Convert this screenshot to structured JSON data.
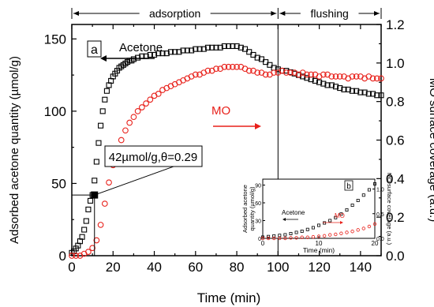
{
  "chart_data": [
    {
      "type": "scatter",
      "panel_label": "a",
      "xlabel": "Time (min)",
      "ylabel": "Adsorbed acetone quantity (µmol/g)",
      "y2label": "MO surface coverage (a.u.)",
      "xlim": [
        0,
        150
      ],
      "ylim": [
        0,
        160
      ],
      "y2lim": [
        0,
        1.2
      ],
      "xticks": [
        "0",
        "20",
        "40",
        "60",
        "80",
        "100",
        "120",
        "140"
      ],
      "yticks": [
        "0",
        "50",
        "100",
        "150"
      ],
      "y2ticks": [
        "0.0",
        "0.2",
        "0.4",
        "0.6",
        "0.8",
        "1.0",
        "1.2"
      ],
      "phases": [
        {
          "label": "adsorption",
          "from": 0,
          "to": 100
        },
        {
          "label": "flushing",
          "from": 100,
          "to": 150
        }
      ],
      "annotation": {
        "text": "42µmol/g,θ=0.29",
        "x": 11,
        "y": 42
      },
      "series": [
        {
          "name": "Acetone",
          "axis": "left",
          "color": "#000000",
          "marker": "square",
          "x": [
            0,
            1,
            2,
            3,
            4,
            5,
            6,
            7,
            8,
            9,
            10,
            11,
            12,
            13,
            14,
            15,
            16,
            17,
            18,
            19,
            20,
            21,
            22,
            23,
            24,
            25,
            26,
            27,
            28,
            29,
            30,
            32,
            34,
            36,
            38,
            40,
            42,
            44,
            46,
            48,
            50,
            52,
            54,
            56,
            58,
            60,
            62,
            64,
            66,
            68,
            70,
            72,
            74,
            76,
            78,
            80,
            82,
            84,
            86,
            88,
            90,
            92,
            94,
            96,
            98,
            100,
            102,
            104,
            106,
            108,
            110,
            112,
            114,
            116,
            118,
            120,
            122,
            124,
            126,
            128,
            130,
            132,
            134,
            136,
            138,
            140,
            142,
            144,
            146,
            148,
            150
          ],
          "y": [
            2,
            3,
            5,
            7,
            10,
            13,
            18,
            24,
            32,
            38,
            42,
            52,
            65,
            78,
            90,
            100,
            108,
            114,
            118,
            121,
            124,
            126,
            128,
            130,
            131,
            132,
            133,
            134,
            135,
            135,
            136,
            137,
            138,
            138,
            139,
            139,
            140,
            140,
            140,
            141,
            141,
            141,
            142,
            142,
            142,
            143,
            143,
            143,
            144,
            144,
            144,
            144,
            145,
            145,
            145,
            145,
            144,
            143,
            141,
            139,
            137,
            136,
            134,
            132,
            130,
            129,
            128,
            128,
            127,
            126,
            125,
            124,
            123,
            122,
            121,
            120,
            119,
            118,
            118,
            117,
            116,
            115,
            115,
            114,
            114,
            113,
            113,
            112,
            112,
            111,
            111
          ]
        },
        {
          "name": "MO",
          "axis": "right",
          "color": "#e8201a",
          "marker": "circle",
          "x": [
            0,
            2,
            4,
            6,
            8,
            10,
            12,
            14,
            16,
            18,
            20,
            22,
            24,
            26,
            28,
            30,
            32,
            34,
            36,
            38,
            40,
            42,
            44,
            46,
            48,
            50,
            52,
            54,
            56,
            58,
            60,
            62,
            64,
            66,
            68,
            70,
            72,
            74,
            76,
            78,
            80,
            82,
            84,
            86,
            88,
            90,
            92,
            94,
            96,
            98,
            100,
            102,
            104,
            106,
            108,
            110,
            112,
            114,
            116,
            118,
            120,
            122,
            124,
            126,
            128,
            130,
            132,
            134,
            136,
            138,
            140,
            142,
            144,
            146,
            148,
            150
          ],
          "y": [
            0.0,
            0.0,
            0.0,
            0.01,
            0.02,
            0.04,
            0.08,
            0.16,
            0.27,
            0.38,
            0.47,
            0.54,
            0.6,
            0.65,
            0.69,
            0.72,
            0.75,
            0.77,
            0.79,
            0.81,
            0.83,
            0.84,
            0.86,
            0.87,
            0.88,
            0.89,
            0.9,
            0.91,
            0.92,
            0.93,
            0.94,
            0.94,
            0.95,
            0.96,
            0.96,
            0.97,
            0.97,
            0.98,
            0.98,
            0.98,
            0.98,
            0.98,
            0.97,
            0.96,
            0.96,
            0.95,
            0.95,
            0.94,
            0.94,
            0.95,
            0.95,
            0.96,
            0.95,
            0.95,
            0.95,
            0.94,
            0.95,
            0.94,
            0.94,
            0.94,
            0.93,
            0.94,
            0.94,
            0.93,
            0.93,
            0.93,
            0.93,
            0.92,
            0.93,
            0.93,
            0.93,
            0.92,
            0.93,
            0.92,
            0.92,
            0.92
          ]
        }
      ]
    },
    {
      "type": "scatter",
      "panel_label": "b",
      "xlabel": "Time (min)",
      "ylabel": "Adsorbed acetone quantity (µmol/g)",
      "y2label": "MO surface coverage (a.u.)",
      "xlim": [
        0,
        20
      ],
      "ylim": [
        0,
        100
      ],
      "y2lim": [
        0,
        1.2
      ],
      "xticks": [
        "0",
        "10",
        "20"
      ],
      "yticks": [
        "0",
        "30",
        "60",
        "90"
      ],
      "y2ticks": [
        "0.0",
        "0.5",
        "1.0"
      ],
      "series": [
        {
          "name": "Acetone",
          "axis": "left",
          "color": "#000000",
          "marker": "square",
          "x": [
            0,
            1,
            2,
            3,
            4,
            5,
            6,
            7,
            8,
            9,
            10,
            11,
            12,
            13,
            14,
            15,
            16,
            17,
            18,
            19,
            20
          ],
          "y": [
            2,
            3,
            4,
            5,
            6,
            8,
            10,
            12,
            15,
            18,
            22,
            26,
            30,
            35,
            41,
            48,
            56,
            64,
            73,
            82,
            92
          ]
        },
        {
          "name": "MO",
          "axis": "right",
          "color": "#e8201a",
          "marker": "circle",
          "x": [
            0,
            1,
            2,
            3,
            4,
            5,
            6,
            7,
            8,
            9,
            10,
            11,
            12,
            13,
            14,
            15,
            16,
            17,
            18,
            19,
            20
          ],
          "y": [
            0.0,
            0.0,
            0.0,
            0.0,
            0.0,
            0.01,
            0.01,
            0.02,
            0.02,
            0.03,
            0.04,
            0.05,
            0.07,
            0.08,
            0.1,
            0.12,
            0.14,
            0.17,
            0.2,
            0.24,
            0.29
          ]
        }
      ]
    }
  ]
}
